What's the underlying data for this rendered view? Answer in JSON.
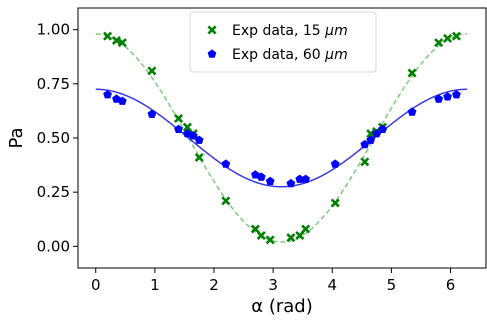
{
  "chart_data": {
    "type": "scatter",
    "xlabel": "α (rad)",
    "ylabel": "Pa",
    "xlim": [
      -0.3,
      6.6
    ],
    "ylim": [
      -0.1,
      1.1
    ],
    "x_ticks": [
      0,
      1,
      2,
      3,
      4,
      5,
      6
    ],
    "x_tick_labels": [
      "0",
      "1",
      "2",
      "3",
      "4",
      "5",
      "6"
    ],
    "y_ticks": [
      0.0,
      0.25,
      0.5,
      0.75,
      1.0
    ],
    "y_tick_labels": [
      "0.00",
      "0.25",
      "0.50",
      "0.75",
      "1.00"
    ],
    "grid": false,
    "legend_position": "top-center",
    "legend": [
      {
        "prefix": "Exp data, 15 ",
        "unit": "μm",
        "marker": "x",
        "color": "#008000"
      },
      {
        "prefix": "Exp data, 60 ",
        "unit": "μm",
        "marker": "pentagon",
        "color": "#0000ff"
      }
    ],
    "series": [
      {
        "name": "Exp data, 15 μm",
        "marker": "x",
        "color": "#008000",
        "points": [
          [
            0.2,
            0.97
          ],
          [
            0.35,
            0.95
          ],
          [
            0.45,
            0.94
          ],
          [
            0.95,
            0.81
          ],
          [
            1.4,
            0.59
          ],
          [
            1.55,
            0.55
          ],
          [
            1.65,
            0.52
          ],
          [
            1.75,
            0.41
          ],
          [
            2.2,
            0.21
          ],
          [
            2.7,
            0.08
          ],
          [
            2.8,
            0.05
          ],
          [
            2.95,
            0.03
          ],
          [
            3.3,
            0.04
          ],
          [
            3.45,
            0.05
          ],
          [
            3.55,
            0.08
          ],
          [
            4.05,
            0.2
          ],
          [
            4.55,
            0.39
          ],
          [
            4.65,
            0.52
          ],
          [
            4.75,
            0.53
          ],
          [
            4.85,
            0.55
          ],
          [
            5.35,
            0.8
          ],
          [
            5.8,
            0.94
          ],
          [
            5.95,
            0.96
          ],
          [
            6.1,
            0.97
          ]
        ]
      },
      {
        "name": "Exp data, 60 μm",
        "marker": "pentagon",
        "color": "#0000ff",
        "points": [
          [
            0.2,
            0.7
          ],
          [
            0.35,
            0.68
          ],
          [
            0.45,
            0.67
          ],
          [
            0.95,
            0.61
          ],
          [
            1.4,
            0.54
          ],
          [
            1.55,
            0.52
          ],
          [
            1.65,
            0.51
          ],
          [
            1.75,
            0.49
          ],
          [
            2.2,
            0.38
          ],
          [
            2.7,
            0.33
          ],
          [
            2.8,
            0.32
          ],
          [
            2.95,
            0.3
          ],
          [
            3.3,
            0.29
          ],
          [
            3.45,
            0.31
          ],
          [
            3.55,
            0.31
          ],
          [
            4.05,
            0.38
          ],
          [
            4.55,
            0.47
          ],
          [
            4.65,
            0.49
          ],
          [
            4.75,
            0.52
          ],
          [
            4.85,
            0.54
          ],
          [
            5.35,
            0.62
          ],
          [
            5.8,
            0.68
          ],
          [
            5.95,
            0.69
          ],
          [
            6.1,
            0.7
          ]
        ]
      }
    ],
    "fits": [
      {
        "color": "#7ec97e",
        "dash": true,
        "a": 0.5,
        "b": 0.48,
        "phase": 0.0,
        "period": 6.28
      },
      {
        "color": "#3b3be0",
        "dash": false,
        "a": 0.5,
        "b": 0.225,
        "phase": 0.0,
        "period": 6.28
      }
    ],
    "fit_x_range": [
      0,
      6.28
    ]
  }
}
